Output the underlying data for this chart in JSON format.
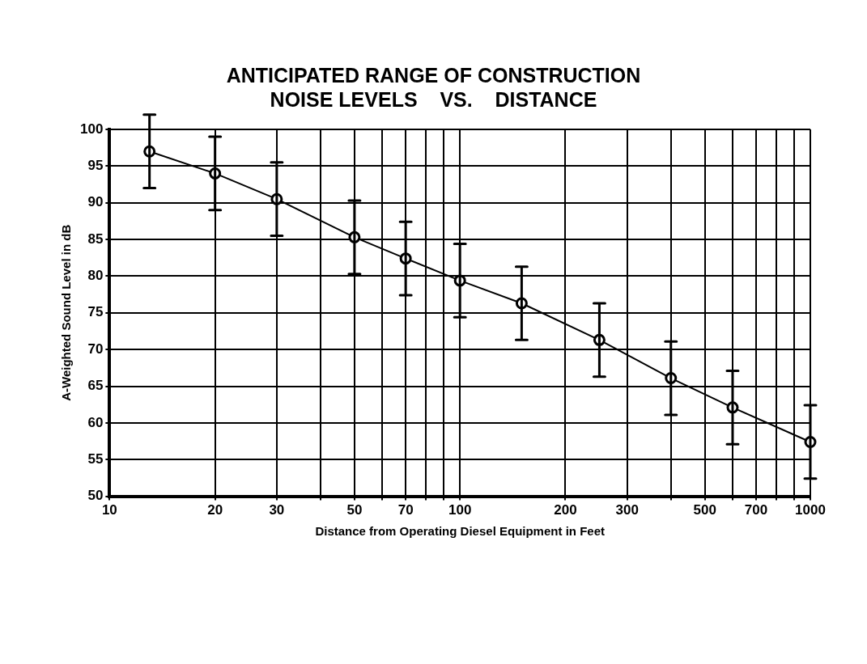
{
  "chart_data": {
    "type": "line",
    "title": "ANTICIPATED RANGE OF CONSTRUCTION\nNOISE LEVELS    VS.    DISTANCE",
    "xlabel": "Distance from Operating Diesel Equipment in Feet",
    "ylabel": "A-Weighted Sound Level in dB",
    "x": [
      13,
      20,
      30,
      50,
      70,
      100,
      150,
      250,
      400,
      600,
      1000
    ],
    "series": [
      {
        "color": "#000000",
        "values": [
          97,
          94,
          90.5,
          85.3,
          82.4,
          79.4,
          76.3,
          71.3,
          66.1,
          62.1,
          57.4
        ],
        "errors": [
          5,
          5,
          5,
          5,
          5,
          5,
          5,
          5,
          5,
          5,
          5
        ]
      }
    ],
    "log": "x",
    "xlim": [
      10,
      1000
    ],
    "ylim": [
      50,
      100
    ],
    "xticks": [
      10,
      20,
      30,
      {
        "value": 40,
        "label": null
      },
      50,
      {
        "value": 60,
        "label": null
      },
      70,
      {
        "value": 80,
        "label": null
      },
      {
        "value": 90,
        "label": null
      },
      100,
      200,
      300,
      {
        "value": 400,
        "label": null
      },
      500,
      {
        "value": 600,
        "label": null
      },
      700,
      {
        "value": 800,
        "label": null
      },
      {
        "value": 900,
        "label": null
      },
      1000
    ],
    "yticks": [
      50,
      55,
      60,
      65,
      70,
      75,
      80,
      85,
      90,
      95,
      100
    ],
    "grid": true,
    "legend": false,
    "marker": "circle",
    "line_style": "solid"
  }
}
